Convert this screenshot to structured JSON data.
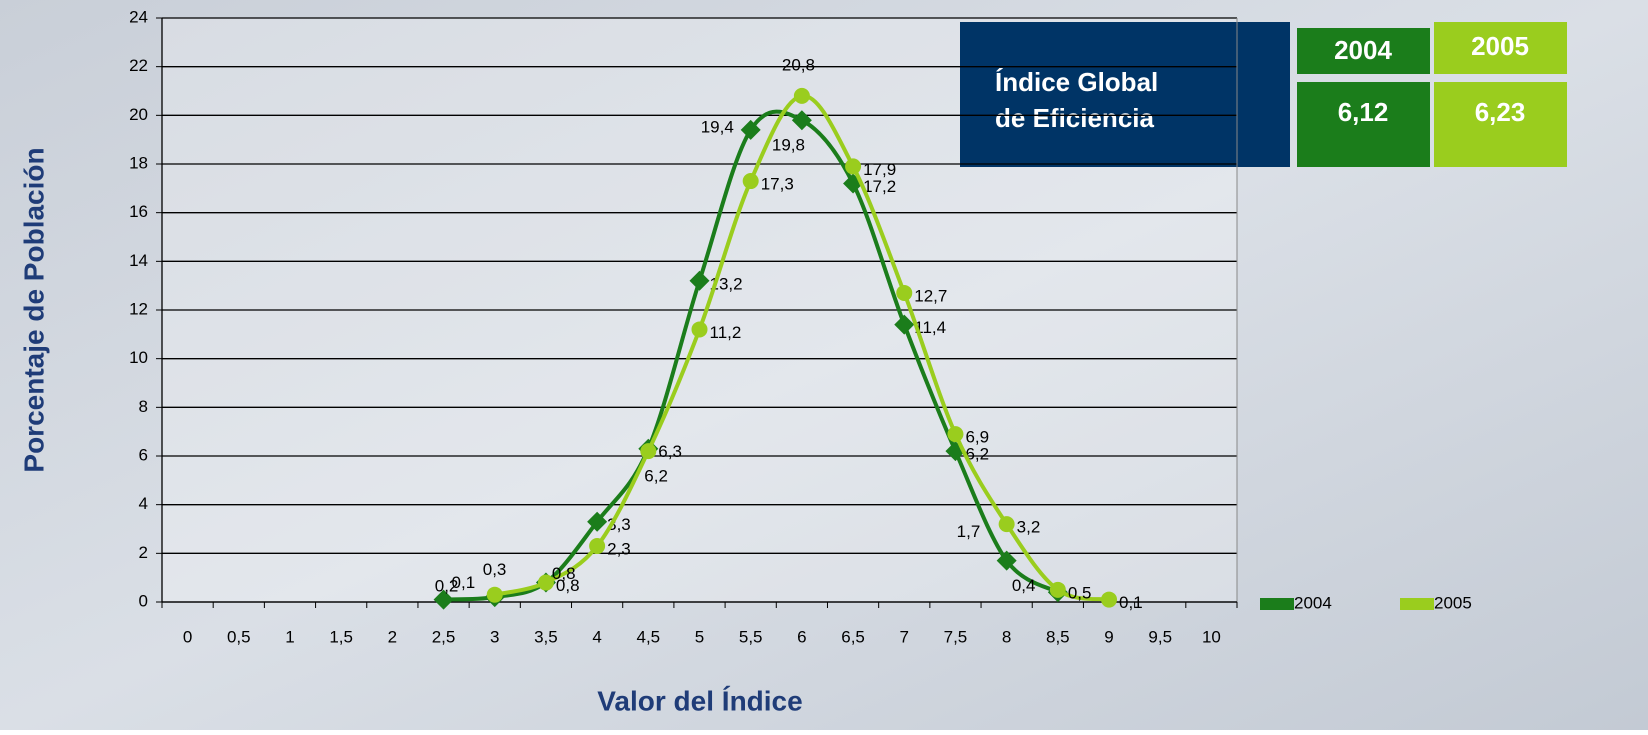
{
  "chart_data": {
    "type": "line",
    "x_label": "Valor del Índice",
    "y_label": "Porcentaje de Población",
    "categories": [
      "0",
      "0,5",
      "1",
      "1,5",
      "2",
      "2,5",
      "3",
      "3,5",
      "4",
      "4,5",
      "5",
      "5,5",
      "6",
      "6,5",
      "7",
      "7,5",
      "8",
      "8,5",
      "9",
      "9,5",
      "10"
    ],
    "series": [
      {
        "name": "2004",
        "color": "#1b7d1b",
        "marker": "diamond",
        "values": [
          null,
          null,
          null,
          null,
          null,
          0.1,
          0.2,
          0.8,
          3.3,
          6.3,
          13.2,
          19.4,
          19.8,
          17.2,
          11.4,
          6.2,
          1.7,
          0.4,
          null,
          null,
          null
        ],
        "value_labels": [
          null,
          null,
          null,
          null,
          null,
          "0,1",
          "0,2",
          "0,8",
          "3,3",
          "6,3",
          "13,2",
          "19,4",
          "19,8",
          "17,2",
          "11,4",
          "6,2",
          "1,7",
          "0,4",
          null,
          null,
          null
        ]
      },
      {
        "name": "2005",
        "color": "#9acd1e",
        "marker": "circle",
        "values": [
          null,
          null,
          null,
          null,
          null,
          null,
          0.3,
          0.8,
          2.3,
          6.2,
          11.2,
          17.3,
          20.8,
          17.9,
          12.7,
          6.9,
          3.2,
          0.5,
          0.1,
          null,
          null
        ],
        "value_labels": [
          null,
          null,
          null,
          null,
          null,
          null,
          "0,3",
          "0,8",
          "2,3",
          "6,2",
          "11,2",
          "17,3",
          "20,8",
          "17,9",
          "12,7",
          "6,9",
          "3,2",
          "0,5",
          "0,1",
          null,
          null
        ]
      }
    ],
    "ylim": [
      0,
      24
    ],
    "yticks": [
      0,
      2,
      4,
      6,
      8,
      10,
      12,
      14,
      16,
      18,
      20,
      22,
      24
    ],
    "grid": true,
    "legend": "bottom-right",
    "summary": {
      "label": [
        "Índice Global",
        "de Eficiencia"
      ],
      "headers": [
        "2004",
        "2005"
      ],
      "values": [
        "6,12",
        "6,23"
      ]
    }
  }
}
